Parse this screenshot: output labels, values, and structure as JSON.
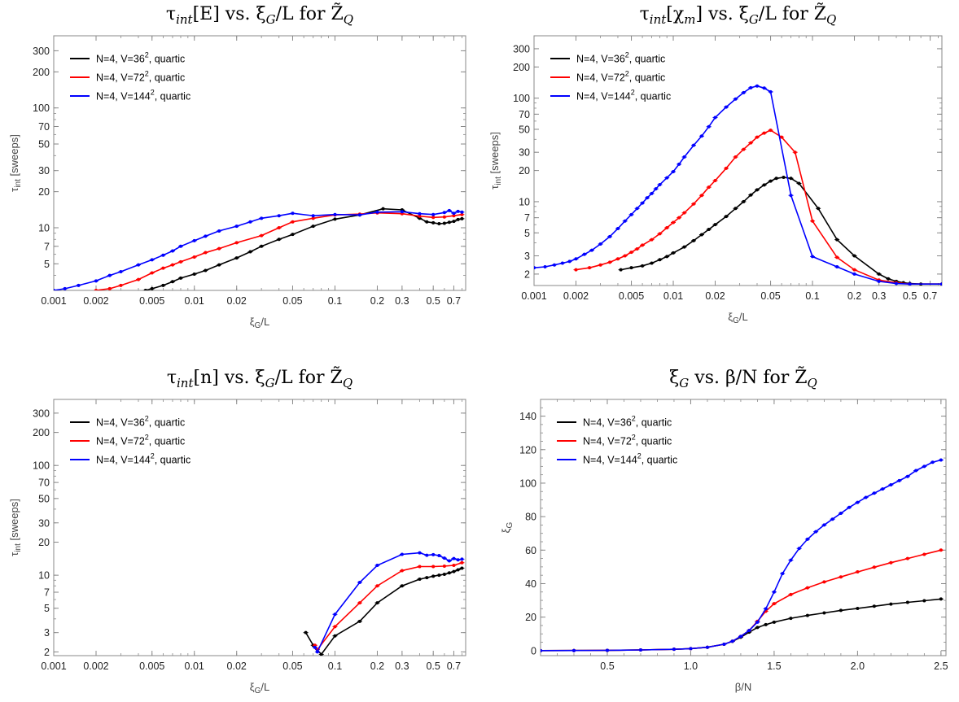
{
  "chart_data": [
    {
      "type": "line",
      "title": "τ_int[E] vs. ξ_G/L for Z̃_Q",
      "xlabel": "ξG/L",
      "ylabel": "τint [sweeps]",
      "xscale": "log",
      "yscale": "log",
      "xlim": [
        0.001,
        0.85
      ],
      "ylim": [
        3,
        400
      ],
      "xticks": [
        0.001,
        0.002,
        0.005,
        0.01,
        0.02,
        0.05,
        0.1,
        0.2,
        0.3,
        0.5,
        0.7
      ],
      "xticklabels": [
        "0.001",
        "0.002",
        "0.005",
        "0.01",
        "0.02",
        "0.05",
        "0.1",
        "0.2",
        "0.3",
        "0.5",
        "0.7"
      ],
      "yticks": [
        5,
        7,
        10,
        20,
        30,
        50,
        70,
        100,
        200,
        300
      ],
      "yticklabels": [
        "5",
        "7",
        "10",
        "20",
        "30",
        "50",
        "70",
        "100",
        "200",
        "300"
      ],
      "legend_position": "top-left",
      "series": [
        {
          "name": "N=4, V=36², quartic",
          "color": "#000000",
          "x": [
            0.0045,
            0.005,
            0.006,
            0.007,
            0.008,
            0.01,
            0.012,
            0.015,
            0.02,
            0.025,
            0.03,
            0.04,
            0.05,
            0.07,
            0.1,
            0.15,
            0.22,
            0.3,
            0.4,
            0.45,
            0.5,
            0.55,
            0.6,
            0.65,
            0.7,
            0.75,
            0.8
          ],
          "y": [
            3.0,
            3.1,
            3.3,
            3.55,
            3.8,
            4.1,
            4.4,
            4.9,
            5.6,
            6.3,
            7.0,
            8.0,
            8.8,
            10.3,
            11.8,
            12.8,
            14.4,
            14.1,
            12.0,
            11.2,
            11.0,
            10.8,
            10.9,
            11.1,
            11.3,
            11.7,
            11.9
          ]
        },
        {
          "name": "N=4, V=72², quartic",
          "color": "#ff0000",
          "x": [
            0.002,
            0.0025,
            0.003,
            0.004,
            0.005,
            0.006,
            0.007,
            0.008,
            0.01,
            0.012,
            0.015,
            0.02,
            0.03,
            0.04,
            0.05,
            0.07,
            0.1,
            0.15,
            0.2,
            0.3,
            0.4,
            0.5,
            0.6,
            0.7,
            0.8
          ],
          "y": [
            3.0,
            3.1,
            3.3,
            3.7,
            4.2,
            4.6,
            4.9,
            5.2,
            5.7,
            6.2,
            6.7,
            7.5,
            8.6,
            10.0,
            11.2,
            12.0,
            12.8,
            13.0,
            13.3,
            13.1,
            12.5,
            12.2,
            12.3,
            12.6,
            12.9
          ]
        },
        {
          "name": "N=4, V=144², quartic",
          "color": "#0000ff",
          "x": [
            0.001,
            0.0012,
            0.0015,
            0.002,
            0.0025,
            0.003,
            0.004,
            0.005,
            0.006,
            0.007,
            0.008,
            0.01,
            0.012,
            0.015,
            0.02,
            0.025,
            0.03,
            0.04,
            0.05,
            0.07,
            0.1,
            0.15,
            0.2,
            0.3,
            0.4,
            0.5,
            0.6,
            0.65,
            0.7,
            0.75,
            0.8
          ],
          "y": [
            3.0,
            3.1,
            3.3,
            3.6,
            4.0,
            4.3,
            4.9,
            5.4,
            5.9,
            6.4,
            7.0,
            7.8,
            8.5,
            9.4,
            10.3,
            11.2,
            12.0,
            12.6,
            13.2,
            12.6,
            12.9,
            12.8,
            13.5,
            13.6,
            13.1,
            12.9,
            13.4,
            13.9,
            13.2,
            13.7,
            13.5
          ]
        }
      ]
    },
    {
      "type": "line",
      "title": "τ_int[χ_m] vs. ξ_G/L for Z̃_Q",
      "xlabel": "ξG/L",
      "ylabel": "τint [sweeps]",
      "xscale": "log",
      "yscale": "log",
      "xlim": [
        0.001,
        0.85
      ],
      "ylim": [
        1.55,
        400
      ],
      "xticks": [
        0.001,
        0.002,
        0.005,
        0.01,
        0.02,
        0.05,
        0.1,
        0.2,
        0.3,
        0.5,
        0.7
      ],
      "xticklabels": [
        "0.001",
        "0.002",
        "0.005",
        "0.01",
        "0.02",
        "0.05",
        "0.1",
        "0.2",
        "0.3",
        "0.5",
        "0.7"
      ],
      "yticks": [
        2,
        3,
        5,
        7,
        10,
        20,
        30,
        50,
        70,
        100,
        200,
        300
      ],
      "yticklabels": [
        "2",
        "3",
        "5",
        "7",
        "10",
        "20",
        "30",
        "50",
        "70",
        "100",
        "200",
        "300"
      ],
      "legend_position": "top-left",
      "series": [
        {
          "name": "N=4, V=36², quartic",
          "color": "#000000",
          "x": [
            0.0042,
            0.005,
            0.006,
            0.007,
            0.008,
            0.009,
            0.01,
            0.012,
            0.014,
            0.016,
            0.018,
            0.02,
            0.024,
            0.028,
            0.032,
            0.036,
            0.04,
            0.045,
            0.05,
            0.055,
            0.062,
            0.07,
            0.08,
            0.11,
            0.15,
            0.2,
            0.3,
            0.35,
            0.4,
            0.45,
            0.5,
            0.6,
            0.85
          ],
          "y": [
            2.2,
            2.3,
            2.4,
            2.55,
            2.75,
            2.95,
            3.2,
            3.65,
            4.2,
            4.8,
            5.4,
            6.0,
            7.2,
            8.6,
            10.0,
            11.6,
            13.0,
            14.5,
            15.8,
            16.8,
            17.2,
            16.8,
            15.0,
            8.6,
            4.3,
            3.0,
            2.0,
            1.8,
            1.7,
            1.65,
            1.62,
            1.6,
            1.6
          ]
        },
        {
          "name": "N=4, V=72², quartic",
          "color": "#ff0000",
          "x": [
            0.002,
            0.0025,
            0.003,
            0.0035,
            0.004,
            0.0045,
            0.005,
            0.0055,
            0.006,
            0.007,
            0.008,
            0.009,
            0.01,
            0.011,
            0.012,
            0.014,
            0.016,
            0.018,
            0.02,
            0.024,
            0.028,
            0.032,
            0.036,
            0.04,
            0.045,
            0.05,
            0.06,
            0.075,
            0.1,
            0.15,
            0.2,
            0.3,
            0.4,
            0.5,
            0.85
          ],
          "y": [
            2.2,
            2.3,
            2.45,
            2.6,
            2.8,
            3.0,
            3.25,
            3.5,
            3.8,
            4.3,
            4.9,
            5.6,
            6.3,
            7.0,
            7.8,
            9.5,
            11.5,
            13.8,
            16.0,
            21.0,
            27.0,
            32.0,
            37.0,
            42.0,
            46.0,
            49.0,
            42.0,
            30.0,
            6.5,
            2.9,
            2.2,
            1.75,
            1.65,
            1.6,
            1.6
          ]
        },
        {
          "name": "N=4, V=144², quartic",
          "color": "#0000ff",
          "x": [
            0.001,
            0.0012,
            0.0014,
            0.0016,
            0.0018,
            0.002,
            0.0023,
            0.0026,
            0.003,
            0.0035,
            0.004,
            0.0045,
            0.005,
            0.0055,
            0.006,
            0.0065,
            0.007,
            0.0075,
            0.008,
            0.009,
            0.01,
            0.011,
            0.012,
            0.014,
            0.016,
            0.018,
            0.02,
            0.024,
            0.028,
            0.032,
            0.036,
            0.04,
            0.045,
            0.05,
            0.07,
            0.1,
            0.15,
            0.2,
            0.3,
            0.4,
            0.5,
            0.85
          ],
          "y": [
            2.3,
            2.35,
            2.45,
            2.55,
            2.65,
            2.8,
            3.1,
            3.4,
            3.9,
            4.6,
            5.5,
            6.5,
            7.5,
            8.6,
            9.7,
            10.9,
            12.0,
            13.3,
            14.6,
            17.0,
            19.5,
            23.0,
            27.0,
            35.0,
            43.0,
            53.0,
            65.0,
            82.0,
            98.0,
            113.0,
            126.0,
            131.0,
            125.0,
            115.0,
            11.5,
            2.95,
            2.35,
            2.0,
            1.7,
            1.62,
            1.6,
            1.6
          ]
        }
      ]
    },
    {
      "type": "line",
      "title": "τ_int[n] vs. ξ_G/L for Z̃_Q",
      "xlabel": "ξG/L",
      "ylabel": "τint [sweeps]",
      "xscale": "log",
      "yscale": "log",
      "xlim": [
        0.001,
        0.85
      ],
      "ylim": [
        1.85,
        400
      ],
      "xticks": [
        0.001,
        0.002,
        0.005,
        0.01,
        0.02,
        0.05,
        0.1,
        0.2,
        0.3,
        0.5,
        0.7
      ],
      "xticklabels": [
        "0.001",
        "0.002",
        "0.005",
        "0.01",
        "0.02",
        "0.05",
        "0.1",
        "0.2",
        "0.3",
        "0.5",
        "0.7"
      ],
      "yticks": [
        2,
        3,
        5,
        7,
        10,
        20,
        30,
        50,
        70,
        100,
        200,
        300
      ],
      "yticklabels": [
        "2",
        "3",
        "5",
        "7",
        "10",
        "20",
        "30",
        "50",
        "70",
        "100",
        "200",
        "300"
      ],
      "legend_position": "top-left",
      "series": [
        {
          "name": "N=4, V=36², quartic",
          "color": "#000000",
          "x": [
            0.062,
            0.07,
            0.08,
            0.1,
            0.15,
            0.2,
            0.3,
            0.4,
            0.45,
            0.5,
            0.55,
            0.6,
            0.65,
            0.7,
            0.75,
            0.8
          ],
          "y": [
            3.0,
            2.3,
            1.9,
            2.8,
            3.8,
            5.6,
            8.0,
            9.2,
            9.5,
            9.8,
            10.0,
            10.2,
            10.5,
            10.8,
            11.2,
            11.6
          ]
        },
        {
          "name": "N=4, V=72², quartic",
          "color": "#ff0000",
          "x": [
            0.072,
            0.075,
            0.1,
            0.15,
            0.2,
            0.3,
            0.4,
            0.5,
            0.6,
            0.7,
            0.8
          ],
          "y": [
            2.3,
            2.1,
            3.4,
            5.6,
            8.0,
            11.0,
            12.0,
            12.0,
            12.1,
            12.3,
            13.0
          ]
        },
        {
          "name": "N=4, V=144², quartic",
          "color": "#0000ff",
          "x": [
            0.072,
            0.075,
            0.1,
            0.15,
            0.2,
            0.3,
            0.4,
            0.45,
            0.5,
            0.55,
            0.6,
            0.65,
            0.7,
            0.75,
            0.8
          ],
          "y": [
            2.2,
            2.0,
            4.4,
            8.6,
            12.3,
            15.5,
            16.0,
            15.2,
            15.4,
            15.1,
            14.3,
            13.5,
            14.2,
            13.8,
            14.0
          ]
        }
      ]
    },
    {
      "type": "line",
      "title": "ξ_G vs. β/N for Z̃_Q",
      "xlabel": "β/N",
      "ylabel": "ξG",
      "xscale": "linear",
      "yscale": "linear",
      "xlim": [
        0.1,
        2.53
      ],
      "ylim": [
        -3,
        150
      ],
      "xticks": [
        0.5,
        1.0,
        1.5,
        2.0,
        2.5
      ],
      "xticklabels": [
        "0.5",
        "1.0",
        "1.5",
        "2.0",
        "2.5"
      ],
      "yticks": [
        0,
        20,
        40,
        60,
        80,
        100,
        120,
        140
      ],
      "yticklabels": [
        "0",
        "20",
        "40",
        "60",
        "80",
        "100",
        "120",
        "140"
      ],
      "legend_position": "top-left",
      "series": [
        {
          "name": "N=4, V=36², quartic",
          "color": "#000000",
          "x": [
            0.1,
            0.3,
            0.5,
            0.7,
            0.9,
            1.0,
            1.1,
            1.2,
            1.25,
            1.3,
            1.35,
            1.4,
            1.45,
            1.5,
            1.6,
            1.7,
            1.8,
            1.9,
            2.0,
            2.1,
            2.2,
            2.3,
            2.4,
            2.5
          ],
          "y": [
            0.0,
            0.05,
            0.15,
            0.4,
            0.8,
            1.2,
            2.0,
            3.8,
            5.5,
            8.0,
            11.0,
            13.8,
            15.5,
            17.0,
            19.3,
            21.0,
            22.5,
            24.0,
            25.2,
            26.5,
            27.8,
            28.8,
            29.8,
            30.8
          ]
        },
        {
          "name": "N=4, V=72², quartic",
          "color": "#ff0000",
          "x": [
            0.1,
            0.3,
            0.5,
            0.7,
            0.9,
            1.0,
            1.1,
            1.2,
            1.25,
            1.3,
            1.35,
            1.4,
            1.45,
            1.5,
            1.6,
            1.7,
            1.8,
            1.9,
            2.0,
            2.1,
            2.2,
            2.3,
            2.4,
            2.5
          ],
          "y": [
            0.0,
            0.05,
            0.15,
            0.4,
            0.8,
            1.2,
            2.0,
            3.8,
            5.6,
            8.5,
            12.0,
            17.5,
            23.5,
            28.0,
            33.5,
            37.5,
            41.0,
            44.0,
            47.0,
            49.8,
            52.5,
            55.0,
            57.5,
            60.0
          ]
        },
        {
          "name": "N=4, V=144², quartic",
          "color": "#0000ff",
          "x": [
            0.1,
            0.3,
            0.5,
            0.7,
            0.9,
            1.0,
            1.1,
            1.2,
            1.25,
            1.3,
            1.35,
            1.4,
            1.45,
            1.5,
            1.55,
            1.6,
            1.65,
            1.7,
            1.75,
            1.8,
            1.85,
            1.9,
            1.95,
            2.0,
            2.05,
            2.1,
            2.15,
            2.2,
            2.25,
            2.3,
            2.35,
            2.4,
            2.45,
            2.5
          ],
          "y": [
            0.0,
            0.05,
            0.15,
            0.4,
            0.8,
            1.2,
            2.0,
            3.8,
            5.6,
            8.5,
            12.0,
            17.0,
            25.0,
            35.0,
            46.0,
            54.0,
            61.0,
            66.5,
            71.0,
            75.0,
            78.5,
            82.0,
            85.5,
            88.5,
            91.5,
            94.0,
            96.5,
            99.0,
            101.5,
            104.0,
            107.5,
            110.0,
            112.5,
            113.8
          ]
        }
      ]
    }
  ]
}
